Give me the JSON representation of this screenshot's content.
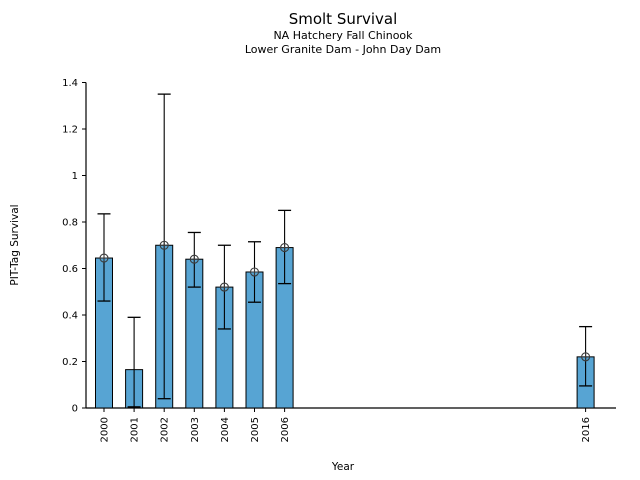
{
  "header": {
    "title": "Smolt Survival",
    "subtitle1": "NA Hatchery Fall Chinook",
    "subtitle2": "Lower Granite Dam - John Day Dam"
  },
  "chart_data": {
    "type": "bar",
    "title": "Smolt Survival",
    "subtitles": [
      "NA Hatchery Fall Chinook",
      "Lower Granite Dam - John Day Dam"
    ],
    "xlabel": "Year",
    "ylabel": "PIT-Tag Survival",
    "ylim": [
      0,
      1.4
    ],
    "yticks": [
      0,
      0.2,
      0.4,
      0.6,
      0.8,
      1,
      1.2,
      1.4
    ],
    "ytick_labels": [
      "0",
      "0.2",
      "0.4",
      "0.6",
      "0.8",
      "1",
      "1.2",
      "1.4"
    ],
    "grid": false,
    "legend": null,
    "categories": [
      "2000",
      "2001",
      "2002",
      "2003",
      "2004",
      "2005",
      "2006",
      "2016"
    ],
    "points": [
      {
        "year": 2000,
        "label": "2000",
        "value": 0.645,
        "err_low": 0.46,
        "err_high": 0.835,
        "marker": true
      },
      {
        "year": 2001,
        "label": "2001",
        "value": 0.165,
        "err_low": 0.005,
        "err_high": 0.39,
        "marker": false
      },
      {
        "year": 2002,
        "label": "2002",
        "value": 0.7,
        "err_low": 0.04,
        "err_high": 1.35,
        "marker": true
      },
      {
        "year": 2003,
        "label": "2003",
        "value": 0.64,
        "err_low": 0.52,
        "err_high": 0.755,
        "marker": true
      },
      {
        "year": 2004,
        "label": "2004",
        "value": 0.52,
        "err_low": 0.34,
        "err_high": 0.7,
        "marker": true
      },
      {
        "year": 2005,
        "label": "2005",
        "value": 0.585,
        "err_low": 0.455,
        "err_high": 0.715,
        "marker": true
      },
      {
        "year": 2006,
        "label": "2006",
        "value": 0.69,
        "err_low": 0.535,
        "err_high": 0.85,
        "marker": true
      },
      {
        "year": 2016,
        "label": "2016",
        "value": 0.22,
        "err_low": 0.095,
        "err_high": 0.35,
        "marker": true
      }
    ],
    "colors": {
      "bar_fill": "#57A4D3",
      "bar_edge": "#000000",
      "error_bar": "#000000",
      "marker_stroke": "#3a3a3a",
      "axis": "#000000",
      "text": "#000000"
    }
  }
}
